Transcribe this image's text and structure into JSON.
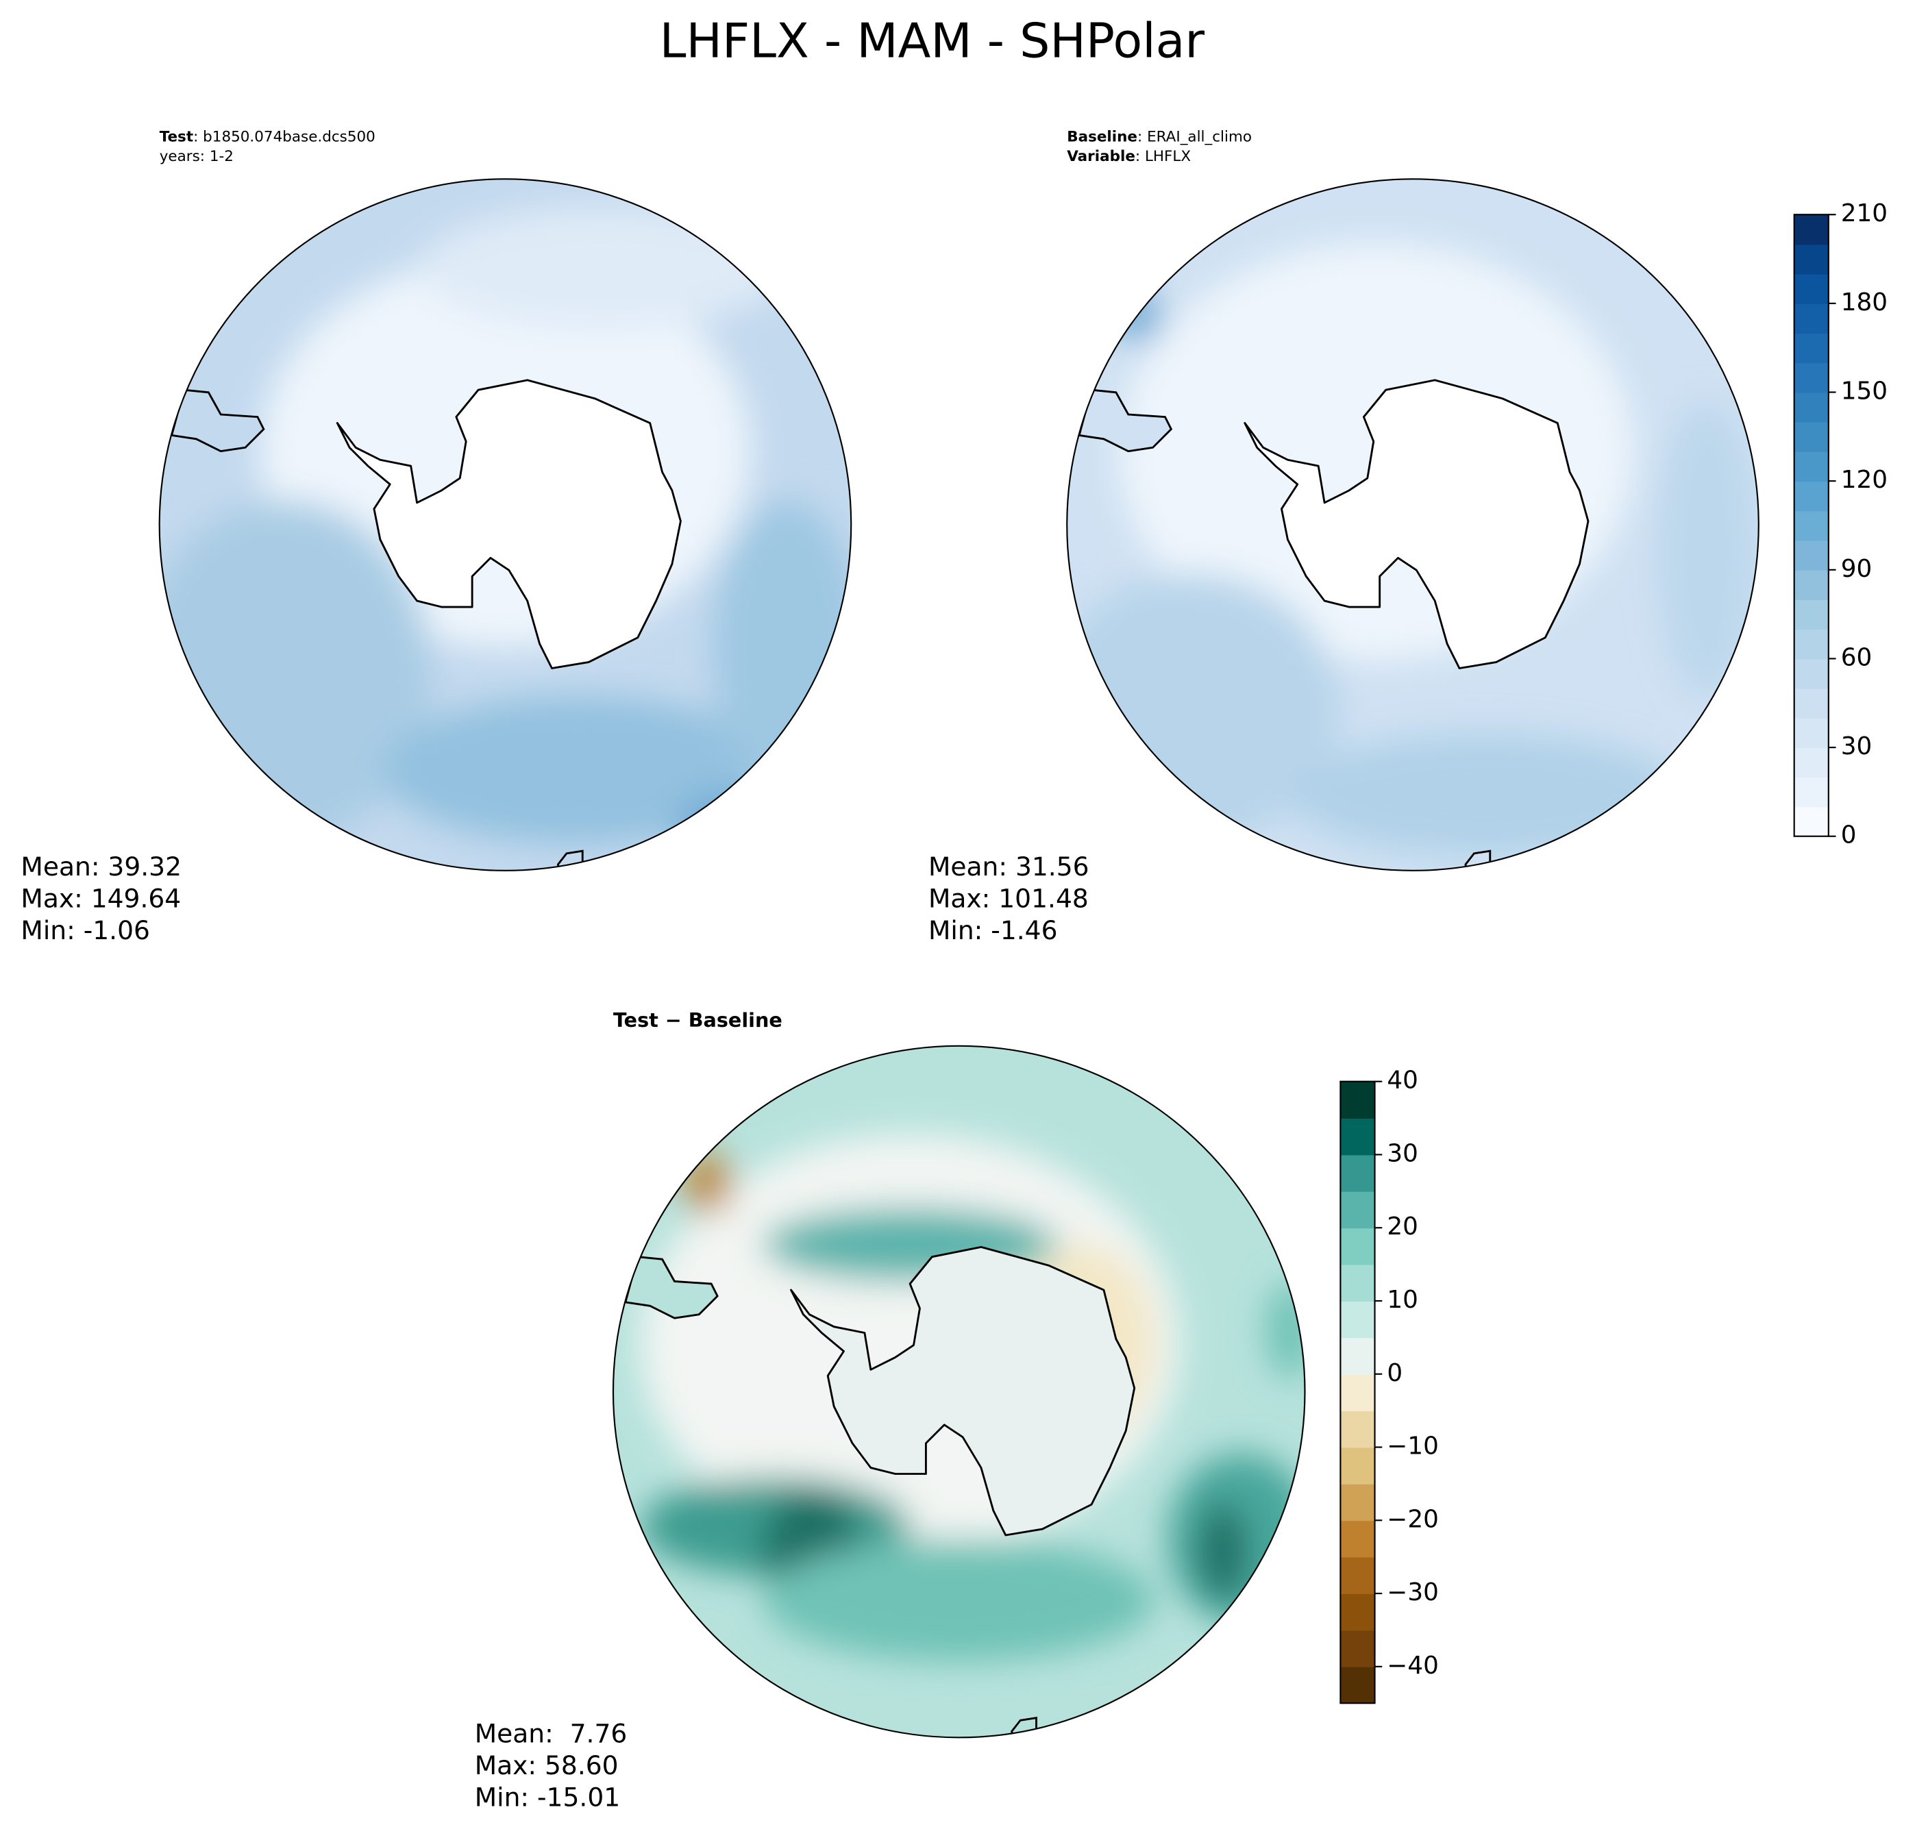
{
  "title": "LHFLX - MAM - SHPolar",
  "panels": [
    {
      "header": [
        {
          "label": "Test",
          "text": ": b1850.074base.dcs500"
        },
        {
          "text": "years: 1-2"
        }
      ],
      "stats": [
        "Mean: 39.32",
        "Max: 149.64",
        "Min: -1.06"
      ]
    },
    {
      "header": [
        {
          "label": "Baseline",
          "text": ": ERAI_all_climo"
        },
        {
          "label": "Variable",
          "text": ": LHFLX"
        }
      ],
      "stats": [
        "Mean: 31.56",
        "Max: 101.48",
        "Min: -1.46"
      ]
    },
    {
      "header": [
        {
          "label": "Test − Baseline"
        }
      ],
      "stats": [
        "Mean:  7.76",
        "Max: 58.60",
        "Min: -15.01"
      ]
    }
  ],
  "colorbars": [
    {
      "type": "colorbar",
      "ylim": [
        0,
        210
      ],
      "yticks": [
        0,
        30,
        60,
        90,
        120,
        150,
        180,
        210
      ],
      "colors": [
        "#f7fbff",
        "#eaf3fb",
        "#e0ecf8",
        "#d6e6f4",
        "#cde0f1",
        "#c1d9ed",
        "#b3d3e8",
        "#a4cce3",
        "#92c1de",
        "#7fb5d9",
        "#6aaed6",
        "#5aa2cf",
        "#4a98c9",
        "#3d8dc3",
        "#3181bd",
        "#2676b8",
        "#1c6ab0",
        "#1460a8",
        "#0b559f",
        "#08468b",
        "#08306b"
      ]
    },
    {
      "type": "colorbar",
      "ylim": [
        -45,
        40
      ],
      "yticks": [
        {
          "value": -40,
          "label": "−40"
        },
        {
          "value": -30,
          "label": "−30"
        },
        {
          "value": -20,
          "label": "−20"
        },
        {
          "value": -10,
          "label": "−10"
        },
        0,
        10,
        20,
        30,
        40
      ],
      "colors": [
        "#543005",
        "#74420a",
        "#8c510a",
        "#a6661a",
        "#bf812d",
        "#cfa255",
        "#dfc27d",
        "#ebd7a6",
        "#f6ecd2",
        "#e8f3f0",
        "#c7eae5",
        "#a5dcd4",
        "#80cdc1",
        "#5ab4ac",
        "#35978f",
        "#01665e",
        "#003c30"
      ]
    }
  ]
}
